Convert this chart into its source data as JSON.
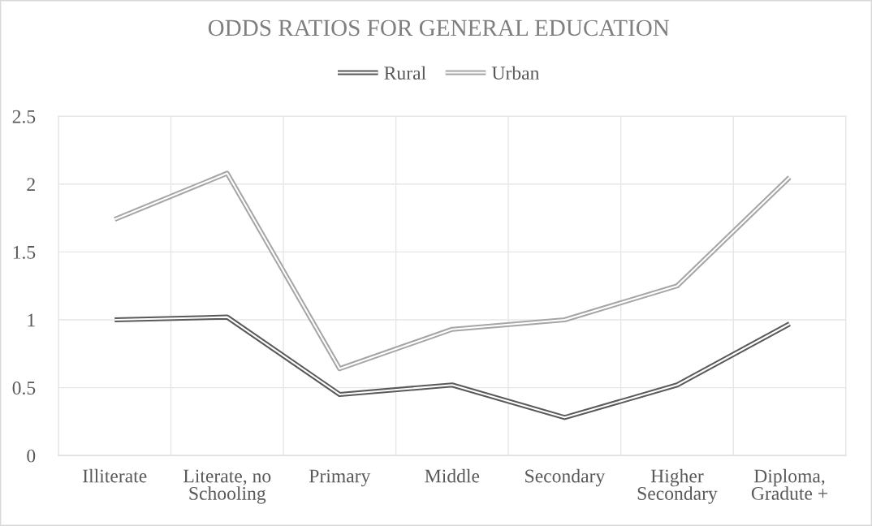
{
  "chart_data": {
    "type": "line",
    "title": "ODDS RATIOS FOR GENERAL EDUCATION",
    "categories": [
      "Illiterate",
      "Literate, no\nSchooling",
      "Primary",
      "Middle",
      "Secondary",
      "Higher\nSecondary",
      "Diploma,\nGradute +"
    ],
    "series": [
      {
        "name": "Rural",
        "color": "#595959",
        "values": [
          1.0,
          1.02,
          0.45,
          0.52,
          0.28,
          0.52,
          0.97
        ]
      },
      {
        "name": "Urban",
        "color": "#a5a5a5",
        "values": [
          1.74,
          2.08,
          0.64,
          0.93,
          1.0,
          1.25,
          2.05
        ]
      }
    ],
    "ylim": [
      0,
      2.5
    ],
    "yticks": [
      0,
      0.5,
      1,
      1.5,
      2,
      2.5
    ],
    "grid": true,
    "legend": "top",
    "line_style": "solid"
  }
}
